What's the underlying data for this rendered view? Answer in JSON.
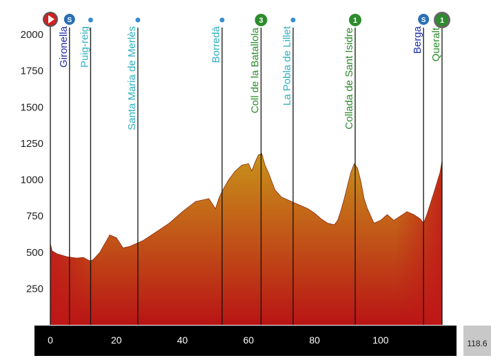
{
  "colors": {
    "sprint": "#2a6fb5",
    "town": "#2a6fb5",
    "climb": "#2e8b2e",
    "start": "#d32020",
    "label_town": "#1a2aa8",
    "label_city": "#2bb0c0",
    "label_climb": "#2a8a2a",
    "profile_top": "#c98a12",
    "profile_bottom": "#c01818"
  },
  "chart_data": {
    "type": "area",
    "title": "",
    "xlabel": "",
    "ylabel": "",
    "xlim": [
      0,
      118.6
    ],
    "ylim": [
      0,
      2000
    ],
    "yticks": [
      250,
      500,
      750,
      1000,
      1250,
      1500,
      1750,
      2000
    ],
    "xticks": [
      0,
      20,
      40,
      60,
      80,
      100
    ],
    "total_distance": "118.6",
    "series": [
      {
        "name": "elevation",
        "x": [
          0,
          0.5,
          2,
          5,
          8,
          10,
          12,
          13,
          15,
          18,
          20,
          22,
          24,
          26,
          28,
          32,
          36,
          40,
          44,
          48,
          50,
          51,
          52,
          54,
          56,
          58,
          60,
          61,
          62,
          63,
          64,
          65,
          66,
          68,
          70,
          72,
          74,
          76,
          78,
          80,
          82,
          84,
          86,
          87,
          88,
          89,
          90,
          91,
          92,
          93,
          94,
          95,
          96,
          97,
          98,
          100,
          102,
          104,
          106,
          108,
          110,
          112,
          113,
          114,
          116,
          118,
          118.6
        ],
        "y": [
          560,
          510,
          490,
          470,
          460,
          465,
          440,
          450,
          500,
          620,
          600,
          530,
          540,
          560,
          580,
          640,
          700,
          780,
          850,
          870,
          800,
          870,
          920,
          1000,
          1060,
          1100,
          1110,
          1060,
          1120,
          1170,
          1180,
          1100,
          1050,
          930,
          880,
          860,
          840,
          820,
          800,
          770,
          730,
          700,
          690,
          720,
          790,
          870,
          960,
          1050,
          1110,
          1080,
          990,
          870,
          800,
          750,
          700,
          720,
          760,
          720,
          750,
          780,
          760,
          730,
          700,
          760,
          900,
          1050,
          1130
        ]
      }
    ],
    "waypoints": [
      {
        "name": "",
        "km": 0,
        "badge": "start",
        "type": "start"
      },
      {
        "name": "Gironella",
        "km": 5.8,
        "badge": "S",
        "type": "sprint"
      },
      {
        "name": "Puig-reig",
        "km": 12.2,
        "badge": "",
        "type": "city"
      },
      {
        "name": "Santa Maria de Merlès",
        "km": 26.5,
        "badge": "",
        "type": "city"
      },
      {
        "name": "Borredà",
        "km": 52.0,
        "badge": "",
        "type": "city"
      },
      {
        "name": "Coll de la Batallola",
        "km": 63.8,
        "badge": "3",
        "type": "climb"
      },
      {
        "name": "La Pobla de Lillet",
        "km": 73.5,
        "badge": "",
        "type": "city"
      },
      {
        "name": "Collada de Sant Isidre",
        "km": 92.3,
        "badge": "1",
        "type": "climb"
      },
      {
        "name": "Berga",
        "km": 113.0,
        "badge": "S",
        "type": "sprint"
      },
      {
        "name": "Queralt",
        "km": 118.6,
        "badge": "1",
        "type": "finish"
      }
    ]
  }
}
